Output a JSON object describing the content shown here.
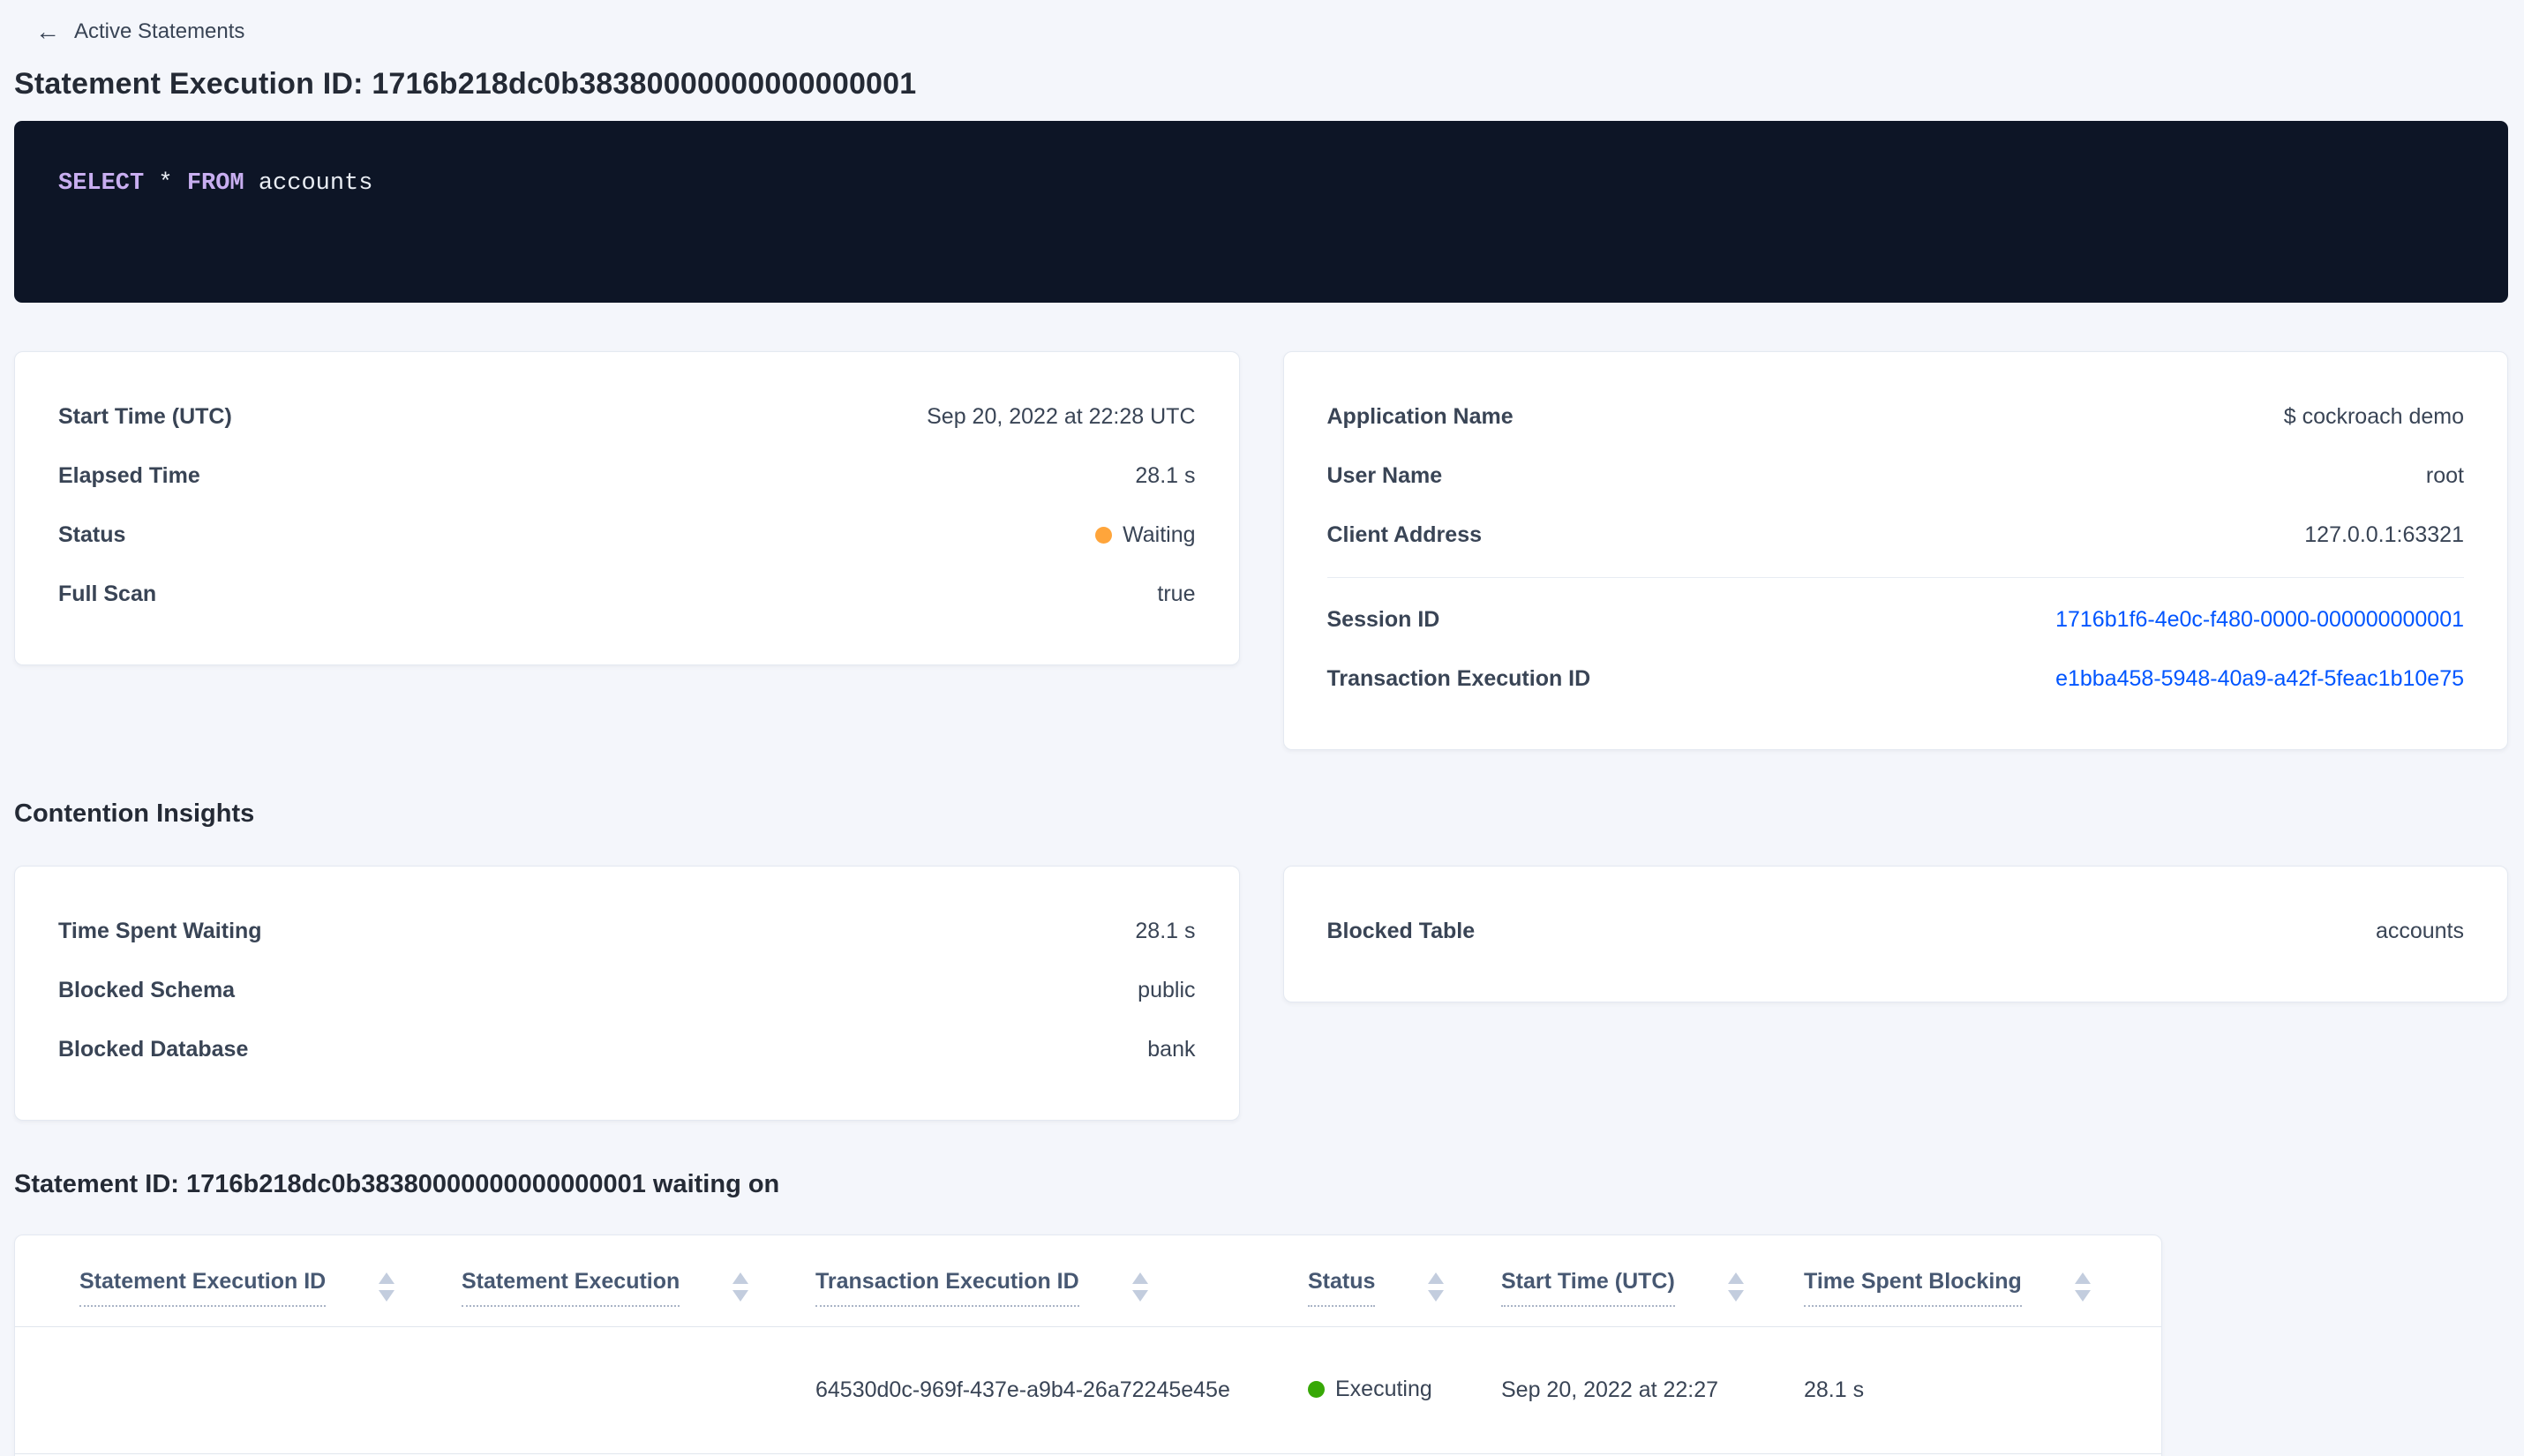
{
  "header": {
    "back_arrow": "←",
    "back_label": "Active Statements",
    "title": "Statement Execution ID: 1716b218dc0b38380000000000000001"
  },
  "sql": {
    "tokens": [
      "SELECT",
      "*",
      "FROM",
      "accounts"
    ]
  },
  "overview_card": {
    "rows": [
      {
        "label": "Start Time (UTC)",
        "value": "Sep 20, 2022 at 22:28 UTC"
      },
      {
        "label": "Elapsed Time",
        "value": "28.1 s"
      },
      {
        "label": "Status",
        "value": "Waiting"
      },
      {
        "label": "Full Scan",
        "value": "true"
      }
    ]
  },
  "session_card": {
    "rows_top": [
      {
        "label": "Application Name",
        "value": "$ cockroach demo"
      },
      {
        "label": "User Name",
        "value": "root"
      },
      {
        "label": "Client Address",
        "value": "127.0.0.1:63321"
      }
    ],
    "rows_links": [
      {
        "label": "Session ID",
        "value": "1716b1f6-4e0c-f480-0000-000000000001"
      },
      {
        "label": "Transaction Execution ID",
        "value": "e1bba458-5948-40a9-a42f-5feac1b10e75"
      }
    ]
  },
  "contention": {
    "heading": "Contention Insights",
    "left_rows": [
      {
        "label": "Time Spent Waiting",
        "value": "28.1 s"
      },
      {
        "label": "Blocked Schema",
        "value": "public"
      },
      {
        "label": "Blocked Database",
        "value": "bank"
      }
    ],
    "right_rows": [
      {
        "label": "Blocked Table",
        "value": "accounts"
      }
    ]
  },
  "waiting_section": {
    "heading": "Statement ID: 1716b218dc0b38380000000000000001 waiting on",
    "columns": [
      "Statement Execution ID",
      "Statement Execution",
      "Transaction Execution ID",
      "Status",
      "Start Time (UTC)",
      "Time Spent Blocking"
    ],
    "rows": [
      {
        "statement_execution_id": "",
        "statement_execution": "",
        "transaction_execution_id": "64530d0c-969f-437e-a9b4-26a72245e45e",
        "status": "Executing",
        "start_time": "Sep 20, 2022 at 22:27",
        "time_spent_blocking": "28.1 s"
      }
    ]
  },
  "icons": {
    "back-arrow-icon": "←",
    "sort-icon": "up-down-triangles",
    "status-dot-icon": "filled-circle"
  },
  "colors": {
    "link_blue": "#0055ff",
    "status_waiting_orange": "#ffa53b",
    "status_executing_green": "#37a806",
    "sql_keyword_purple": "#c8aef0",
    "sql_box_background": "#0d1526",
    "page_background": "#f4f6fb"
  }
}
